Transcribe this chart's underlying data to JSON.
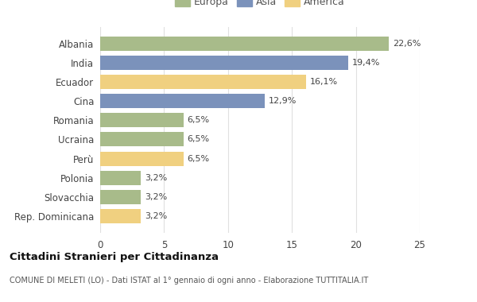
{
  "categories": [
    "Albania",
    "India",
    "Ecuador",
    "Cina",
    "Romania",
    "Ucraina",
    "Perù",
    "Polonia",
    "Slovacchia",
    "Rep. Dominicana"
  ],
  "values": [
    22.6,
    19.4,
    16.1,
    12.9,
    6.5,
    6.5,
    6.5,
    3.2,
    3.2,
    3.2
  ],
  "labels": [
    "22,6%",
    "19,4%",
    "16,1%",
    "12,9%",
    "6,5%",
    "6,5%",
    "6,5%",
    "3,2%",
    "3,2%",
    "3,2%"
  ],
  "continents": [
    "Europa",
    "Asia",
    "America",
    "Asia",
    "Europa",
    "Europa",
    "America",
    "Europa",
    "Europa",
    "America"
  ],
  "colors": {
    "Europa": "#a8bb8a",
    "Asia": "#7b92bb",
    "America": "#f0d080"
  },
  "legend_labels": [
    "Europa",
    "Asia",
    "America"
  ],
  "xlim": [
    0,
    25
  ],
  "xticks": [
    0,
    5,
    10,
    15,
    20,
    25
  ],
  "title": "Cittadini Stranieri per Cittadinanza",
  "subtitle": "COMUNE DI MELETI (LO) - Dati ISTAT al 1° gennaio di ogni anno - Elaborazione TUTTITALIA.IT",
  "bg_color": "#ffffff"
}
